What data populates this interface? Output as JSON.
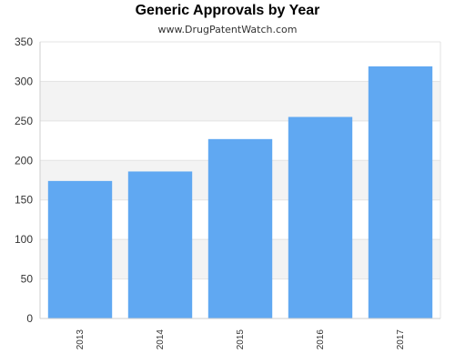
{
  "chart_data": {
    "type": "bar",
    "title": "Generic Approvals by Year",
    "subtitle": "www.DrugPatentWatch.com",
    "categories": [
      "2013",
      "2014",
      "2015",
      "2016",
      "2017"
    ],
    "values": [
      174,
      186,
      227,
      255,
      319
    ],
    "xlabel": "",
    "ylabel": "",
    "ylim": [
      0,
      350
    ],
    "yticks": [
      0,
      50,
      100,
      150,
      200,
      250,
      300,
      350
    ],
    "bar_color": "#60a8f2",
    "band_color": "#f3f3f3",
    "grid": true,
    "legend": "none"
  }
}
